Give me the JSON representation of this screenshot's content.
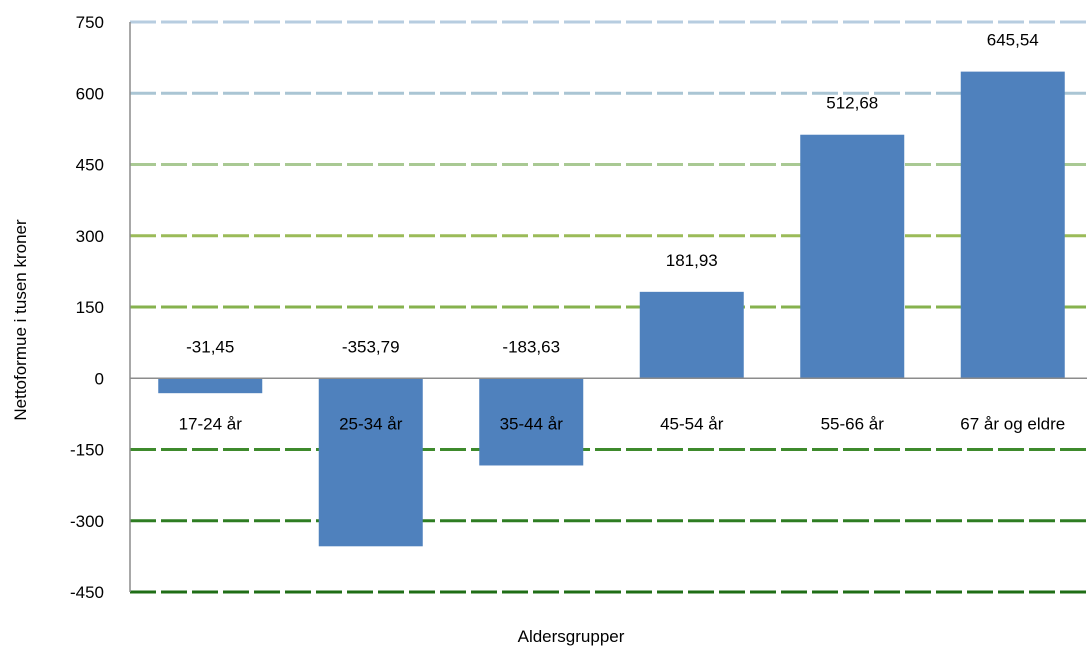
{
  "chart_data": {
    "type": "bar",
    "categories": [
      "17-24 år",
      "25-34 år",
      "35-44 år",
      "45-54 år",
      "55-66 år",
      "67 år og eldre"
    ],
    "values": [
      -31.45,
      -353.79,
      -183.63,
      181.93,
      512.68,
      645.54
    ],
    "data_labels": [
      "-31,45",
      "-353,79",
      "-183,63",
      "181,93",
      "512,68",
      "645,54"
    ],
    "title": "",
    "xlabel": "Aldersgrupper",
    "ylabel": "Nettoformue i tusen kroner",
    "ylim": [
      -450,
      750
    ],
    "yticks": [
      750,
      600,
      450,
      300,
      150,
      0,
      -150,
      -300,
      -450
    ],
    "ytick_labels": [
      "750",
      "600",
      "450",
      "300",
      "150",
      "0",
      "-150",
      "-300",
      "-450"
    ],
    "grid": true,
    "legend": "none",
    "colors": {
      "bar": "#4f81bd",
      "grid": [
        "#b7cde0",
        "#aac5d4",
        "#a9c993",
        "#9bbb59",
        "#86b24e",
        "#5f9a3b",
        "#3e8a2c",
        "#2e7d22",
        "#1f6e16"
      ],
      "axis": "#8c8c8c"
    }
  }
}
